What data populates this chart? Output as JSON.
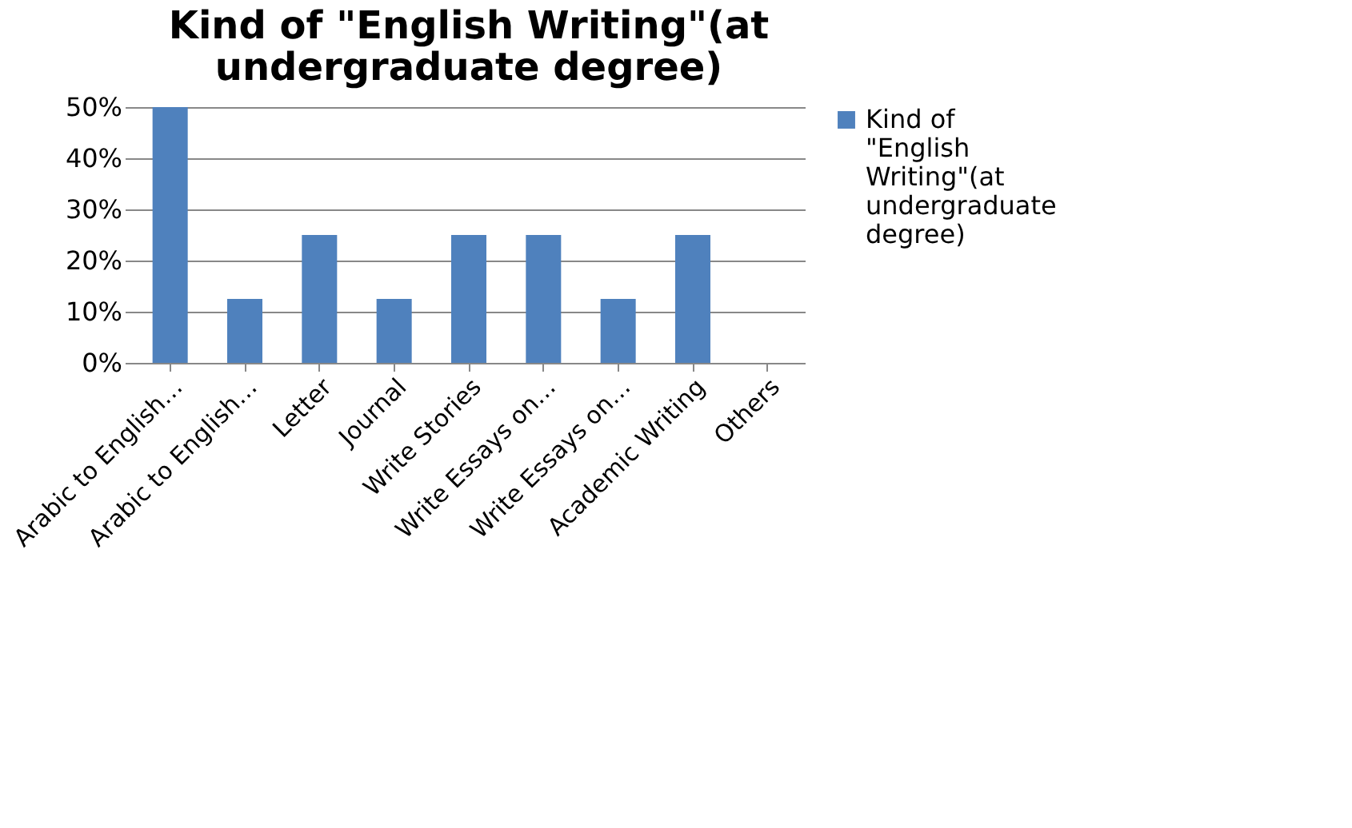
{
  "chart_data": {
    "type": "bar",
    "title": "Kind of \"English Writing\"(at undergraduate degree)",
    "categories": [
      "Arabic to English…",
      "Arabic to English…",
      "Letter",
      "Journal",
      "Write Stories",
      "Write Essays on…",
      "Write Essays on…",
      "Academic Writing",
      "Others"
    ],
    "series": [
      {
        "name": "Kind of \"English Writing\"(at undergraduate degree)",
        "color": "#4f81bd",
        "values": [
          50,
          12.5,
          25,
          12.5,
          25,
          25,
          12.5,
          25,
          0
        ]
      }
    ],
    "ylim": [
      0,
      50
    ],
    "yticks": [
      {
        "value": 0,
        "label": "0%"
      },
      {
        "value": 10,
        "label": "10%"
      },
      {
        "value": 20,
        "label": "20%"
      },
      {
        "value": 30,
        "label": "30%"
      },
      {
        "value": 40,
        "label": "40%"
      },
      {
        "value": 50,
        "label": "50%"
      }
    ],
    "grid": "y",
    "legend": "right"
  }
}
